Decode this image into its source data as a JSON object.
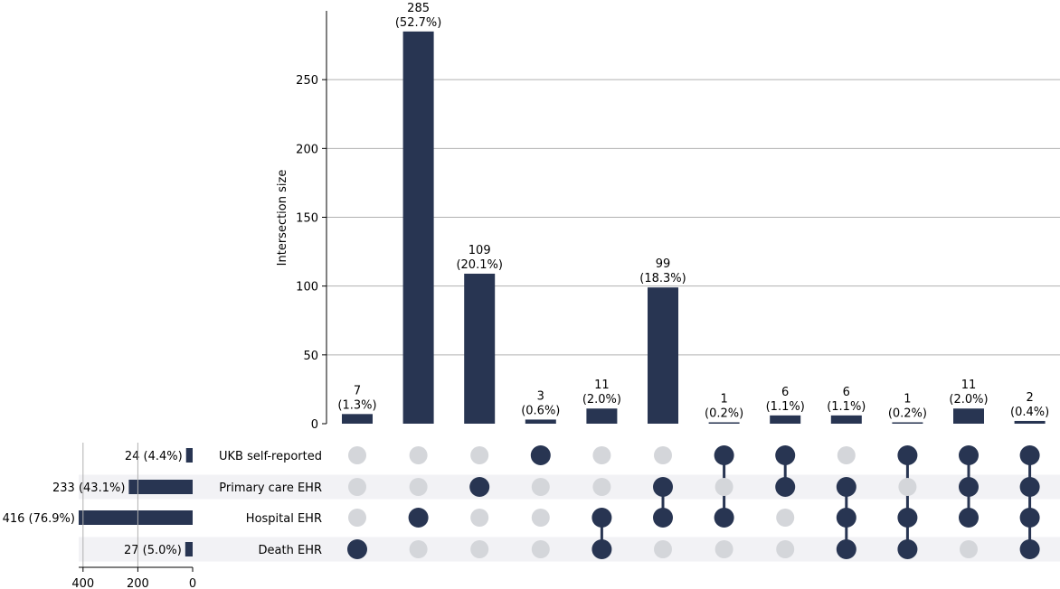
{
  "chart_data": {
    "type": "upset",
    "title": "",
    "ylabel": "Intersection size",
    "ylim": [
      0,
      300
    ],
    "yticks": [
      0,
      50,
      100,
      150,
      200,
      250
    ],
    "sets": [
      {
        "name": "UKB self-reported",
        "size": 24,
        "label": "24 (4.4%)"
      },
      {
        "name": "Primary care EHR",
        "size": 233,
        "label": "233 (43.1%)"
      },
      {
        "name": "Hospital EHR",
        "size": 416,
        "label": "416 (76.9%)"
      },
      {
        "name": "Death EHR",
        "size": 27,
        "label": "27 (5.0%)"
      }
    ],
    "set_size_xlim": [
      0,
      430
    ],
    "set_size_ticks": [
      400,
      200,
      0
    ],
    "intersections": [
      {
        "members": [
          false,
          false,
          false,
          true
        ],
        "value": 7,
        "count_label": "7",
        "pct_label": "(1.3%)"
      },
      {
        "members": [
          false,
          false,
          true,
          false
        ],
        "value": 285,
        "count_label": "285",
        "pct_label": "(52.7%)"
      },
      {
        "members": [
          false,
          true,
          false,
          false
        ],
        "value": 109,
        "count_label": "109",
        "pct_label": "(20.1%)"
      },
      {
        "members": [
          true,
          false,
          false,
          false
        ],
        "value": 3,
        "count_label": "3",
        "pct_label": "(0.6%)"
      },
      {
        "members": [
          false,
          false,
          true,
          true
        ],
        "value": 11,
        "count_label": "11",
        "pct_label": "(2.0%)"
      },
      {
        "members": [
          false,
          true,
          true,
          false
        ],
        "value": 99,
        "count_label": "99",
        "pct_label": "(18.3%)"
      },
      {
        "members": [
          true,
          false,
          true,
          false
        ],
        "value": 1,
        "count_label": "1",
        "pct_label": "(0.2%)"
      },
      {
        "members": [
          true,
          true,
          false,
          false
        ],
        "value": 6,
        "count_label": "6",
        "pct_label": "(1.1%)"
      },
      {
        "members": [
          false,
          true,
          true,
          true
        ],
        "value": 6,
        "count_label": "6",
        "pct_label": "(1.1%)"
      },
      {
        "members": [
          true,
          false,
          true,
          true
        ],
        "value": 1,
        "count_label": "1",
        "pct_label": "(0.2%)"
      },
      {
        "members": [
          true,
          true,
          true,
          false
        ],
        "value": 11,
        "count_label": "11",
        "pct_label": "(2.0%)"
      },
      {
        "members": [
          true,
          true,
          true,
          true
        ],
        "value": 2,
        "count_label": "2",
        "pct_label": "(0.4%)"
      }
    ],
    "grid": true,
    "colors": {
      "bar": "#283552",
      "dot_active": "#283552",
      "dot_inactive": "#d4d6da",
      "stripe": "#f2f2f5",
      "grid": "#b0b0b0",
      "axis": "#000000"
    }
  }
}
